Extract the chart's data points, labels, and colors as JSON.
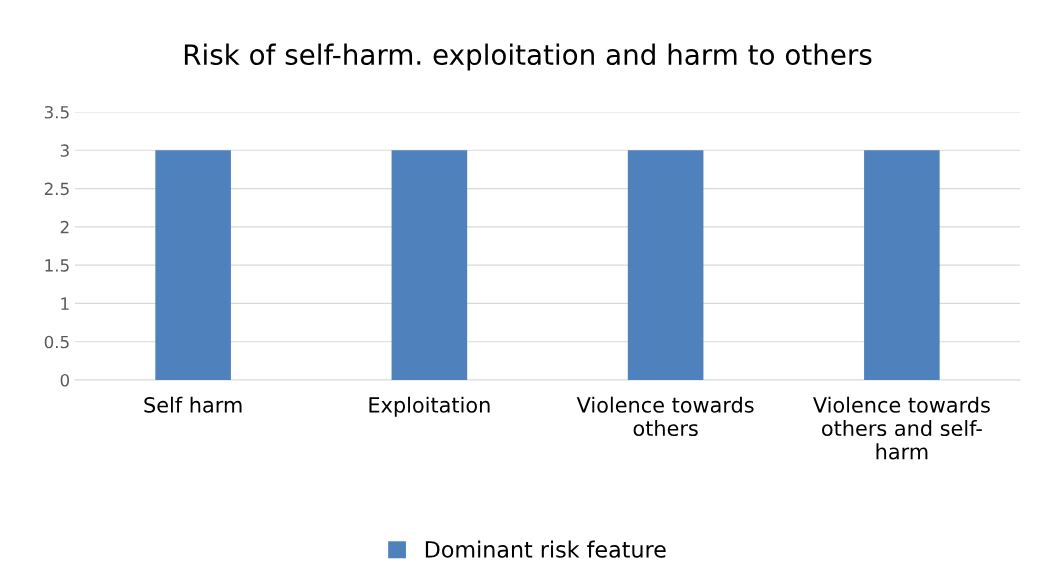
{
  "chart_data": {
    "type": "bar",
    "title": "Risk of self-harm. exploitation and harm to others",
    "categories": [
      "Self harm",
      "Exploitation",
      "Violence towards\nothers",
      "Violence towards\nothers and self-\nharm"
    ],
    "series": [
      {
        "name": "Dominant risk feature",
        "color": "#4f81bd",
        "values": [
          3,
          3,
          3,
          3
        ]
      }
    ],
    "ylim": [
      0,
      3.5
    ],
    "yticks": [
      0,
      0.5,
      1,
      1.5,
      2,
      2.5,
      3,
      3.5
    ],
    "grid": "y",
    "legend": "bottom"
  }
}
